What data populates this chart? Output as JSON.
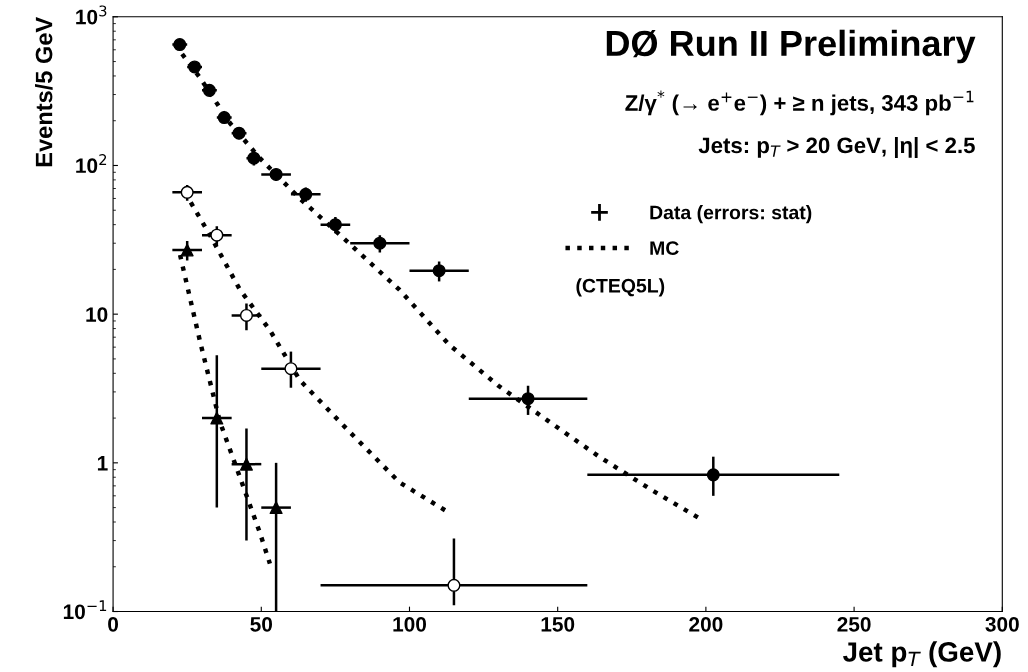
{
  "chart_data": {
    "type": "scatter",
    "xlabel": "Jet p$_{T}$ (GeV)",
    "ylabel": "Events/5 GeV",
    "log": "y",
    "xlim": [
      0,
      300
    ],
    "xticks": [
      0,
      50,
      100,
      150,
      200,
      250,
      300
    ],
    "ylim": [
      0.1,
      1000
    ],
    "yticks": [
      {
        "value": 0.1,
        "label": "10$^{−1}$"
      },
      1,
      10,
      {
        "value": 100,
        "label": "10$^{2}$"
      },
      {
        "value": 1000,
        "label": "10$^{3}$"
      }
    ],
    "grid": false,
    "legend": "top right",
    "annotations": [
      "DØ Run II Preliminary",
      "Z/γ$^{*}$ (→ e$^{+}$e$^{−}$) + ≥ n jets, 343 pb$^{−1}$",
      "Jets: p$_{T}$ > 20 GeV, |η| < 2.5",
      "(CTEQ5L)"
    ],
    "series": [
      {
        "name": "Data (errors: stat)",
        "marker": "circle",
        "color": "#000000",
        "x": [
          22.5,
          27.5,
          32.5,
          37.5,
          42.5,
          47.5,
          55,
          65,
          75,
          90,
          110,
          140,
          202.5
        ],
        "values": [
          650,
          460,
          320,
          210,
          165,
          112,
          87,
          64,
          40,
          30,
          19.6,
          2.7,
          0.83
        ],
        "xerrors": [
          2.5,
          2.5,
          2.5,
          2.5,
          2.5,
          2.5,
          5,
          5,
          5,
          10,
          10,
          20,
          42.5
        ],
        "errors": [
          null,
          null,
          null,
          null,
          15,
          12,
          8,
          7,
          5,
          4,
          3,
          [
            2.1,
            3.3
          ],
          [
            0.6,
            1.1
          ]
        ]
      },
      {
        "marker": "circle",
        "color": "#ffffff",
        "x": [
          25,
          35,
          45,
          60,
          115
        ],
        "values": [
          66,
          34,
          9.8,
          4.3,
          0.15
        ],
        "xerrors": [
          5,
          5,
          5,
          10,
          45
        ],
        "errors": [
          8,
          5,
          2,
          [
            3.2,
            5.6
          ],
          [
            0.11,
            0.31
          ]
        ]
      },
      {
        "marker": "triangle",
        "color": "#000000",
        "x": [
          25,
          35,
          45,
          55
        ],
        "values": [
          27,
          2.0,
          0.98,
          0.5
        ],
        "xerrors": [
          5,
          5,
          5,
          5
        ],
        "errors": [
          4,
          [
            0.5,
            5.3
          ],
          [
            0.3,
            1.7
          ],
          [
            0.1,
            1.0
          ]
        ]
      },
      {
        "name": "MC",
        "type": "line",
        "line_style": "dotted",
        "color": "#000000",
        "x": [
          20.9,
          29.3,
          39.4,
          49.5,
          63,
          80,
          96.6,
          113.5,
          130,
          147,
          164,
          181,
          199
        ],
        "values": [
          650,
          390,
          193,
          112,
          60,
          29.5,
          14.6,
          6.2,
          3.3,
          1.9,
          1.1,
          0.67,
          0.41
        ]
      },
      {
        "type": "line",
        "line_style": "dotted",
        "color": "#000000",
        "x": [
          24.2,
          32.7,
          42.8,
          52.9,
          63,
          80,
          96.6,
          113.5
        ],
        "values": [
          66,
          34,
          14.6,
          7.8,
          3.6,
          1.6,
          0.74,
          0.46
        ]
      },
      {
        "type": "line",
        "line_style": "dotted",
        "color": "#000000",
        "x": [
          22.6,
          29.3,
          36,
          42.8,
          49.5,
          52.9
        ],
        "values": [
          25,
          6.6,
          1.9,
          0.8,
          0.34,
          0.21
        ]
      }
    ]
  }
}
